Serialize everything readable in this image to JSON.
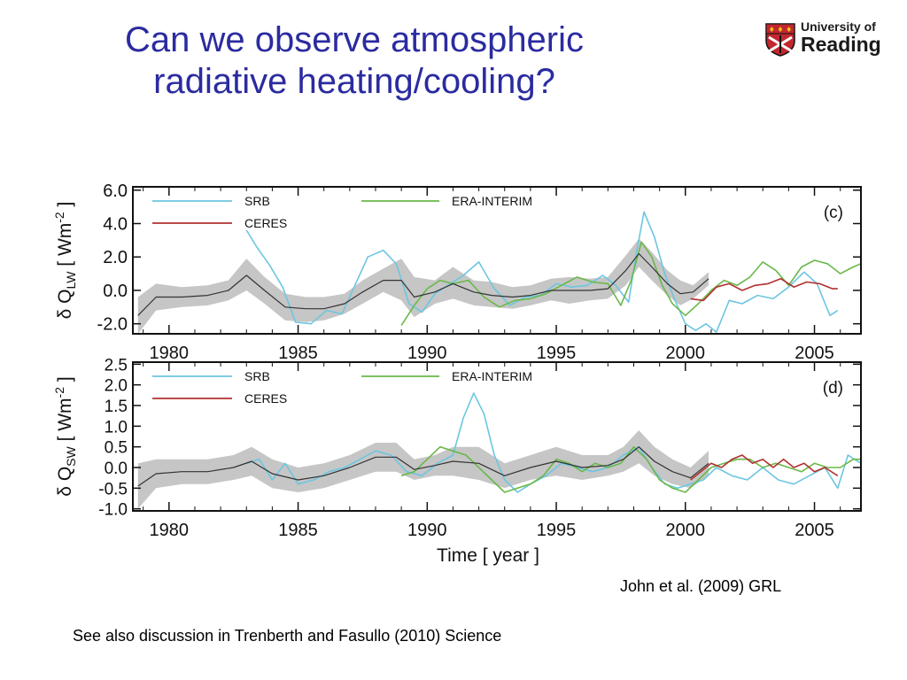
{
  "slide": {
    "title_line1": "Can we observe atmospheric",
    "title_line2": "radiative heating/cooling?",
    "logo_line1": "University of",
    "logo_line2": "Reading",
    "citation": "John et al. (2009) GRL",
    "footnote": "See also discussion in Trenberth and Fasullo (2010) Science"
  },
  "colors": {
    "title": "#2b2ba0",
    "srb": "#6cc6e0",
    "era_interim": "#6ab84a",
    "ceres": "#b23030",
    "spread_band": "#c6c6c6",
    "ensemble_mean": "#333333",
    "logo_red": "#c0282e"
  },
  "chart_data": [
    {
      "type": "line",
      "panel_label": "(c)",
      "ylabel_main": "δ Q",
      "ylabel_sub": "LW",
      "ylabel_units": " [ Wm",
      "ylabel_sup": "-2",
      "ylabel_close": " ]",
      "xlabel": "",
      "xlim": [
        1978.6,
        2006.8
      ],
      "ylim": [
        -2.6,
        6.2
      ],
      "yticks": [
        -2.0,
        0.0,
        2.0,
        4.0,
        6.0
      ],
      "ytick_labels": [
        "-2.0",
        "0.0",
        "2.0",
        "4.0",
        "6.0"
      ],
      "xticks": [
        1980,
        1985,
        1990,
        1995,
        2000,
        2005
      ],
      "xtick_labels": [
        "1980",
        "1985",
        "1990",
        "1995",
        "2000",
        "2005"
      ],
      "legend": [
        {
          "name": "SRB",
          "color": "#6cc6e0"
        },
        {
          "name": "CERES",
          "color": "#b23030"
        },
        {
          "name": "ERA-INTERIM",
          "color": "#6ab84a"
        }
      ],
      "band": {
        "x": [
          1978.8,
          1979.5,
          1980.5,
          1981.5,
          1982.3,
          1983.0,
          1983.7,
          1984.5,
          1985.3,
          1986.0,
          1986.8,
          1987.5,
          1988.3,
          1989.0,
          1989.5,
          1990.3,
          1991.0,
          1991.8,
          1992.5,
          1993.3,
          1994.0,
          1994.8,
          1995.5,
          1996.3,
          1997.0,
          1997.7,
          1998.2,
          1998.7,
          1999.3,
          1999.8,
          2000.3,
          2000.9
        ],
        "lower": [
          -2.6,
          -1.2,
          -1.0,
          -0.9,
          -0.6,
          0.0,
          -0.8,
          -1.8,
          -1.9,
          -1.8,
          -1.4,
          -0.8,
          -0.1,
          -0.6,
          -1.6,
          -0.8,
          -0.5,
          -0.9,
          -1.0,
          -1.1,
          -0.9,
          -0.6,
          -0.8,
          -0.6,
          -0.5,
          0.3,
          1.4,
          0.6,
          -0.3,
          -0.9,
          -0.5,
          0.3
        ],
        "upper": [
          -0.4,
          0.4,
          0.2,
          0.3,
          0.6,
          1.9,
          0.8,
          -0.2,
          -0.4,
          -0.4,
          -0.2,
          0.6,
          1.3,
          1.9,
          0.8,
          0.6,
          1.4,
          0.6,
          0.5,
          0.2,
          0.3,
          0.7,
          0.8,
          0.7,
          0.8,
          2.1,
          3.1,
          2.3,
          1.2,
          0.6,
          0.3,
          1.1
        ]
      },
      "series": [
        {
          "name": "SRB",
          "color": "#6cc6e0",
          "x": [
            1983.0,
            1983.4,
            1983.9,
            1984.4,
            1984.9,
            1985.5,
            1986.1,
            1986.7,
            1987.2,
            1987.7,
            1988.3,
            1988.8,
            1989.3,
            1989.8,
            1990.3,
            1990.9,
            1991.4,
            1992.0,
            1992.6,
            1993.2,
            1993.8,
            1994.4,
            1995.0,
            1995.6,
            1996.2,
            1996.8,
            1997.3,
            1997.8,
            1998.1,
            1998.4,
            1998.8,
            1999.2,
            1999.6,
            2000.0,
            2000.4,
            2000.8,
            2001.2,
            2001.7,
            2002.2,
            2002.8,
            2003.4,
            2004.0,
            2004.6,
            2005.1,
            2005.6,
            2005.9
          ],
          "y": [
            3.6,
            2.6,
            1.5,
            0.2,
            -1.9,
            -2.0,
            -1.2,
            -1.4,
            0.3,
            2.0,
            2.4,
            1.6,
            -0.8,
            -1.3,
            -0.2,
            0.4,
            0.9,
            1.7,
            0.1,
            -0.9,
            -0.4,
            -0.3,
            0.4,
            0.2,
            0.3,
            0.9,
            0.3,
            -0.7,
            2.2,
            4.7,
            3.2,
            1.0,
            -0.6,
            -2.0,
            -2.4,
            -2.0,
            -2.5,
            -0.6,
            -0.8,
            -0.3,
            -0.5,
            0.2,
            1.1,
            0.4,
            -1.5,
            -1.2
          ]
        },
        {
          "name": "ERA-INTERIM",
          "color": "#6ab84a",
          "x": [
            1989.0,
            1989.5,
            1990.0,
            1990.5,
            1991.0,
            1991.6,
            1992.2,
            1992.8,
            1993.4,
            1994.0,
            1994.6,
            1995.2,
            1995.8,
            1996.4,
            1997.0,
            1997.5,
            1997.9,
            1998.3,
            1998.7,
            1999.1,
            1999.5,
            2000.0,
            2000.5,
            2001.0,
            2001.5,
            2002.0,
            2002.5,
            2003.0,
            2003.5,
            2004.0,
            2004.5,
            2005.0,
            2005.5,
            2006.0,
            2006.5,
            2006.8
          ],
          "y": [
            -2.1,
            -0.9,
            0.1,
            0.6,
            0.4,
            0.6,
            -0.4,
            -1.0,
            -0.6,
            -0.5,
            -0.2,
            0.3,
            0.8,
            0.5,
            0.4,
            -0.9,
            0.6,
            2.9,
            2.0,
            0.3,
            -0.8,
            -1.5,
            -0.8,
            0.0,
            0.6,
            0.3,
            0.8,
            1.7,
            1.2,
            0.3,
            1.4,
            1.8,
            1.6,
            1.0,
            1.4,
            1.6
          ]
        },
        {
          "name": "CERES",
          "color": "#b23030",
          "x": [
            2000.2,
            2000.7,
            2001.2,
            2001.7,
            2002.2,
            2002.7,
            2003.2,
            2003.7,
            2004.2,
            2004.7,
            2005.2,
            2005.7,
            2005.9
          ],
          "y": [
            -0.5,
            -0.6,
            0.2,
            0.4,
            0.0,
            0.3,
            0.4,
            0.7,
            0.2,
            0.5,
            0.4,
            0.1,
            0.1
          ]
        },
        {
          "name": "Ensemble mean",
          "color": "#333333",
          "x": [
            1978.8,
            1979.5,
            1980.5,
            1981.5,
            1982.3,
            1983.0,
            1983.7,
            1984.5,
            1985.3,
            1986.0,
            1986.8,
            1987.5,
            1988.3,
            1989.0,
            1989.5,
            1990.3,
            1991.0,
            1991.8,
            1992.5,
            1993.3,
            1994.0,
            1994.8,
            1995.5,
            1996.3,
            1997.0,
            1997.7,
            1998.2,
            1998.7,
            1999.3,
            1999.8,
            2000.3,
            2000.9
          ],
          "y": [
            -1.5,
            -0.4,
            -0.4,
            -0.3,
            0.0,
            0.9,
            0.0,
            -1.0,
            -1.1,
            -1.1,
            -0.8,
            -0.1,
            0.6,
            0.6,
            -0.4,
            -0.1,
            0.4,
            -0.1,
            -0.3,
            -0.4,
            -0.3,
            0.0,
            0.0,
            0.0,
            0.1,
            1.2,
            2.2,
            1.4,
            0.4,
            -0.2,
            -0.1,
            0.7
          ]
        }
      ]
    },
    {
      "type": "line",
      "panel_label": "(d)",
      "ylabel_main": "δ Q",
      "ylabel_sub": "SW",
      "ylabel_units": " [ Wm",
      "ylabel_sup": "-2",
      "ylabel_close": " ]",
      "xlabel": "Time [ year ]",
      "xlim": [
        1978.6,
        2006.8
      ],
      "ylim": [
        -1.05,
        2.55
      ],
      "yticks": [
        -1.0,
        -0.5,
        0.0,
        0.5,
        1.0,
        1.5,
        2.0,
        2.5
      ],
      "ytick_labels": [
        "-1.0",
        "-0.5",
        "0.0",
        "0.5",
        "1.0",
        "1.5",
        "2.0",
        "2.5"
      ],
      "xticks": [
        1980,
        1985,
        1990,
        1995,
        2000,
        2005
      ],
      "xtick_labels": [
        "1980",
        "1985",
        "1990",
        "1995",
        "2000",
        "2005"
      ],
      "legend": [
        {
          "name": "SRB",
          "color": "#6cc6e0"
        },
        {
          "name": "CERES",
          "color": "#b23030"
        },
        {
          "name": "ERA-INTERIM",
          "color": "#6ab84a"
        }
      ],
      "band": {
        "x": [
          1978.8,
          1979.5,
          1980.5,
          1981.5,
          1982.5,
          1983.2,
          1984.0,
          1985.0,
          1986.0,
          1987.0,
          1988.0,
          1988.8,
          1989.5,
          1990.3,
          1991.0,
          1992.0,
          1993.0,
          1994.0,
          1995.0,
          1996.0,
          1997.0,
          1997.6,
          1998.2,
          1998.8,
          1999.5,
          2000.2,
          2000.9
        ],
        "lower": [
          -1.0,
          -0.5,
          -0.4,
          -0.4,
          -0.3,
          -0.2,
          -0.5,
          -0.6,
          -0.5,
          -0.3,
          -0.1,
          -0.1,
          -0.3,
          -0.2,
          -0.2,
          -0.3,
          -0.5,
          -0.3,
          -0.2,
          -0.3,
          -0.2,
          -0.1,
          0.1,
          -0.2,
          -0.4,
          -0.5,
          -0.2
        ],
        "upper": [
          0.1,
          0.2,
          0.2,
          0.2,
          0.3,
          0.5,
          0.2,
          0.0,
          0.1,
          0.3,
          0.6,
          0.6,
          0.2,
          0.3,
          0.5,
          0.5,
          0.1,
          0.3,
          0.5,
          0.3,
          0.3,
          0.5,
          0.9,
          0.5,
          0.2,
          0.0,
          0.4
        ]
      },
      "series": [
        {
          "name": "SRB",
          "color": "#6cc6e0",
          "x": [
            1983.0,
            1983.5,
            1984.0,
            1984.5,
            1985.0,
            1985.6,
            1986.2,
            1986.8,
            1987.4,
            1988.0,
            1988.6,
            1989.2,
            1989.8,
            1990.4,
            1991.0,
            1991.4,
            1991.8,
            1992.2,
            1992.6,
            1993.0,
            1993.5,
            1994.0,
            1994.6,
            1995.2,
            1995.8,
            1996.4,
            1997.0,
            1997.6,
            1998.2,
            1998.7,
            1999.2,
            1999.7,
            2000.2,
            2000.7,
            2001.2,
            2001.8,
            2002.4,
            2003.0,
            2003.6,
            2004.2,
            2004.8,
            2005.4,
            2005.9,
            2006.3,
            2006.8
          ],
          "y": [
            0.1,
            0.2,
            -0.3,
            0.1,
            -0.4,
            -0.3,
            -0.1,
            0.0,
            0.2,
            0.4,
            0.3,
            -0.1,
            -0.2,
            0.1,
            0.3,
            1.2,
            1.8,
            1.3,
            0.3,
            -0.3,
            -0.6,
            -0.4,
            -0.2,
            0.1,
            0.0,
            -0.1,
            0.0,
            0.3,
            0.5,
            0.0,
            -0.4,
            -0.5,
            -0.4,
            -0.3,
            0.0,
            -0.2,
            -0.3,
            0.0,
            -0.3,
            -0.4,
            -0.2,
            0.0,
            -0.5,
            0.3,
            0.1
          ]
        },
        {
          "name": "ERA-INTERIM",
          "color": "#6ab84a",
          "x": [
            1989.0,
            1989.5,
            1990.0,
            1990.5,
            1991.0,
            1991.5,
            1992.0,
            1992.5,
            1993.0,
            1993.5,
            1994.0,
            1994.5,
            1995.0,
            1995.5,
            1996.0,
            1996.5,
            1997.0,
            1997.5,
            1998.0,
            1998.5,
            1999.0,
            1999.5,
            2000.0,
            2000.5,
            2001.0,
            2001.5,
            2002.0,
            2002.5,
            2003.0,
            2003.5,
            2004.0,
            2004.5,
            2005.0,
            2005.5,
            2006.0,
            2006.5,
            2006.8
          ],
          "y": [
            -0.2,
            -0.1,
            0.2,
            0.5,
            0.4,
            0.3,
            0.0,
            -0.3,
            -0.6,
            -0.5,
            -0.4,
            -0.2,
            0.2,
            0.1,
            -0.1,
            0.1,
            0.0,
            0.1,
            0.5,
            0.2,
            -0.3,
            -0.5,
            -0.6,
            -0.3,
            0.0,
            0.1,
            0.2,
            0.2,
            0.0,
            0.1,
            0.0,
            -0.1,
            0.1,
            0.0,
            0.0,
            0.2,
            0.2
          ]
        },
        {
          "name": "CERES",
          "color": "#b23030",
          "x": [
            2000.2,
            2000.6,
            2001.0,
            2001.4,
            2001.8,
            2002.2,
            2002.6,
            2003.0,
            2003.4,
            2003.8,
            2004.2,
            2004.6,
            2005.0,
            2005.4,
            2005.9
          ],
          "y": [
            -0.3,
            -0.1,
            0.1,
            0.0,
            0.2,
            0.3,
            0.1,
            0.2,
            0.0,
            0.2,
            0.0,
            0.1,
            -0.1,
            0.0,
            -0.2
          ]
        },
        {
          "name": "Ensemble mean",
          "color": "#333333",
          "x": [
            1978.8,
            1979.5,
            1980.5,
            1981.5,
            1982.5,
            1983.2,
            1984.0,
            1985.0,
            1986.0,
            1987.0,
            1988.0,
            1988.8,
            1989.5,
            1990.3,
            1991.0,
            1992.0,
            1993.0,
            1994.0,
            1995.0,
            1996.0,
            1997.0,
            1997.6,
            1998.2,
            1998.8,
            1999.5,
            2000.2,
            2000.9
          ],
          "y": [
            -0.45,
            -0.15,
            -0.1,
            -0.1,
            0.0,
            0.15,
            -0.15,
            -0.3,
            -0.2,
            0.0,
            0.25,
            0.25,
            -0.05,
            0.05,
            0.15,
            0.1,
            -0.2,
            0.0,
            0.15,
            0.0,
            0.05,
            0.2,
            0.5,
            0.15,
            -0.1,
            -0.25,
            0.1
          ]
        }
      ]
    }
  ]
}
